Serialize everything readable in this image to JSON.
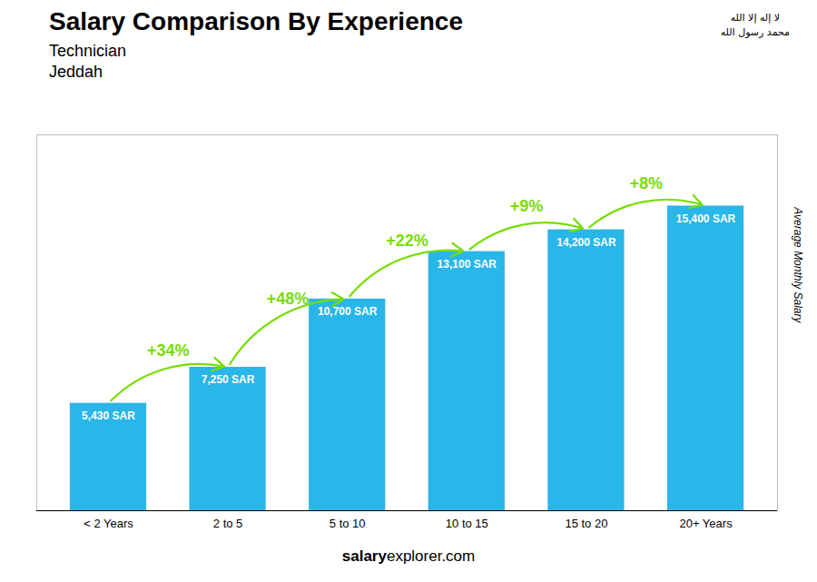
{
  "chart_data": {
    "type": "bar",
    "title": "Salary Comparison By Experience",
    "subtitle": [
      "Technician",
      "Jeddah"
    ],
    "ylabel": "Average Monthly Salary",
    "categories": [
      "< 2 Years",
      "2 to 5",
      "5 to 10",
      "10 to 15",
      "15 to 20",
      "20+ Years"
    ],
    "values": [
      5430,
      7250,
      10700,
      13100,
      14200,
      15400
    ],
    "value_labels": [
      "5,430 SAR",
      "7,250 SAR",
      "10,700 SAR",
      "13,100 SAR",
      "14,200 SAR",
      "15,400 SAR"
    ],
    "data_labels": true,
    "color": "#29B6E8",
    "ylim": [
      0,
      19000
    ],
    "tick_labels": "x",
    "grid": false,
    "annotations": [
      {
        "text": "+34%",
        "from": "< 2 Years",
        "to": "2 to 5",
        "color": "#77DD00"
      },
      {
        "text": "+48%",
        "from": "2 to 5",
        "to": "5 to 10",
        "color": "#77DD00"
      },
      {
        "text": "+22%",
        "from": "5 to 10",
        "to": "10 to 15",
        "color": "#77DD00"
      },
      {
        "text": "+9%",
        "from": "10 to 15",
        "to": "15 to 20",
        "color": "#77DD00"
      },
      {
        "text": "+8%",
        "from": "15 to 20",
        "to": "20+ Years",
        "color": "#77DD00"
      },
      {
        "text": "salary"
      },
      {
        "text": "explorer.com"
      },
      {
        "text": "لا إله إلا الله"
      },
      {
        "text": "محمد رسول الله"
      }
    ]
  }
}
